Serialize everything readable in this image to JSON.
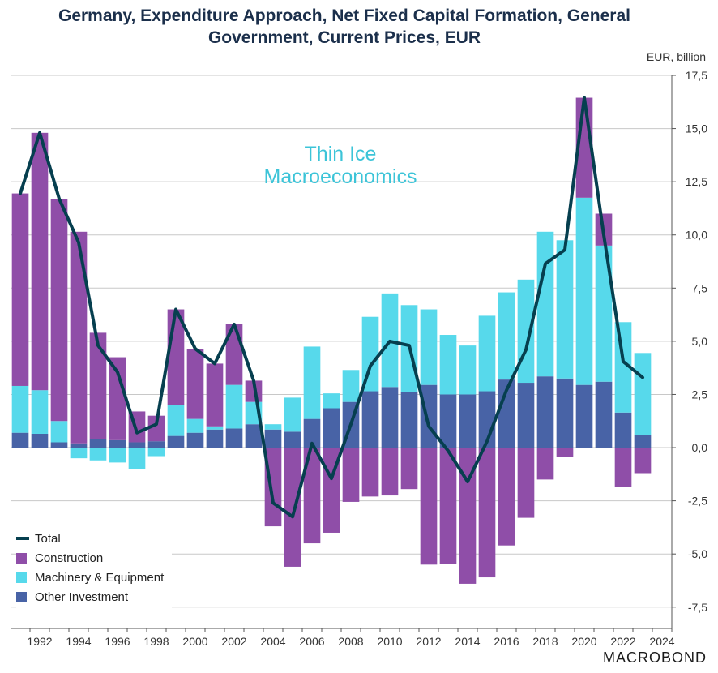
{
  "title_lines": [
    "Germany, Expenditure Approach, Net Fixed Capital Formation, General",
    "Government, Current Prices, EUR"
  ],
  "unit": "EUR, billion",
  "watermark": {
    "line1": "Thin Ice",
    "line2": "Macroeconomics"
  },
  "brand": "MACROBOND",
  "colors": {
    "construction": "#8f4ea8",
    "machinery": "#57d9eb",
    "other": "#4863a6",
    "total": "#063f4f",
    "grid": "#c8c8c8"
  },
  "legend": [
    {
      "label": "Total",
      "key": "total",
      "kind": "line"
    },
    {
      "label": "Construction",
      "key": "construction",
      "kind": "box"
    },
    {
      "label": "Machinery & Equipment",
      "key": "machinery",
      "kind": "box"
    },
    {
      "label": "Other Investment",
      "key": "other",
      "kind": "box"
    }
  ],
  "chart_data": {
    "type": "bar",
    "stacked": true,
    "x": [
      1991,
      1992,
      1993,
      1994,
      1995,
      1996,
      1997,
      1998,
      1999,
      2000,
      2001,
      2002,
      2003,
      2004,
      2005,
      2006,
      2007,
      2008,
      2009,
      2010,
      2011,
      2012,
      2013,
      2014,
      2015,
      2016,
      2017,
      2018,
      2019,
      2020,
      2021,
      2022,
      2023
    ],
    "ylim": [
      -8.5,
      17.5
    ],
    "yticks": [
      17.5,
      15.0,
      12.5,
      10.0,
      7.5,
      5.0,
      2.5,
      0.0,
      -2.5,
      -5.0,
      -7.5
    ],
    "ytick_labels": [
      "17,5",
      "15,0",
      "12,5",
      "10,0",
      "7,5",
      "5,0",
      "2,5",
      "0,0",
      "-2,5",
      "-5,0",
      "-7,5"
    ],
    "xticks": [
      1992,
      1994,
      1996,
      1998,
      2000,
      2002,
      2004,
      2006,
      2008,
      2010,
      2012,
      2014,
      2016,
      2018,
      2020,
      2022,
      2024
    ],
    "xtick_labels": [
      "1992",
      "1994",
      "1996",
      "1998",
      "2000",
      "2002",
      "2004",
      "2006",
      "2008",
      "2010",
      "2012",
      "2014",
      "2016",
      "2018",
      "2020",
      "2022",
      "2024"
    ],
    "grid": true,
    "legend_position": "bottom-left",
    "series": [
      {
        "name": "Other Investment",
        "key": "other",
        "values": [
          0.7,
          0.65,
          0.25,
          0.2,
          0.4,
          0.35,
          0.25,
          0.3,
          0.55,
          0.7,
          0.85,
          0.9,
          1.1,
          0.85,
          0.75,
          1.35,
          1.85,
          2.15,
          2.65,
          2.85,
          2.6,
          2.95,
          2.5,
          2.5,
          2.65,
          3.2,
          3.05,
          3.35,
          3.25,
          2.95,
          3.1,
          1.65,
          0.6
        ]
      },
      {
        "name": "Machinery & Equipment",
        "key": "machinery",
        "values": [
          2.2,
          2.05,
          1.0,
          -0.5,
          -0.6,
          -0.7,
          -1.0,
          -0.4,
          1.45,
          0.65,
          0.15,
          2.05,
          1.05,
          0.25,
          1.6,
          3.4,
          0.7,
          1.5,
          3.5,
          4.4,
          4.1,
          3.55,
          2.8,
          2.3,
          3.55,
          4.1,
          4.85,
          6.8,
          6.5,
          8.8,
          6.4,
          4.25,
          3.85
        ]
      },
      {
        "name": "Construction",
        "key": "construction",
        "values": [
          9.05,
          12.1,
          10.45,
          9.95,
          5.0,
          3.9,
          1.45,
          1.2,
          4.5,
          3.3,
          2.95,
          2.85,
          1.0,
          -3.7,
          -5.6,
          -4.5,
          -4.0,
          -2.55,
          -2.3,
          -2.25,
          -1.95,
          -5.5,
          -5.45,
          -6.4,
          -6.1,
          -4.6,
          -3.3,
          -1.5,
          -0.45,
          4.7,
          1.5,
          -1.85,
          -1.2
        ]
      },
      {
        "name": "Total",
        "key": "total",
        "values": [
          11.95,
          14.8,
          11.7,
          9.65,
          4.8,
          3.55,
          0.7,
          1.1,
          6.5,
          4.65,
          3.95,
          5.8,
          3.15,
          -2.6,
          -3.25,
          0.2,
          -1.45,
          1.1,
          3.85,
          5.0,
          4.8,
          1.0,
          -0.15,
          -1.6,
          0.3,
          2.7,
          4.6,
          8.65,
          9.3,
          16.45,
          10.0,
          4.05,
          3.3
        ]
      }
    ]
  }
}
